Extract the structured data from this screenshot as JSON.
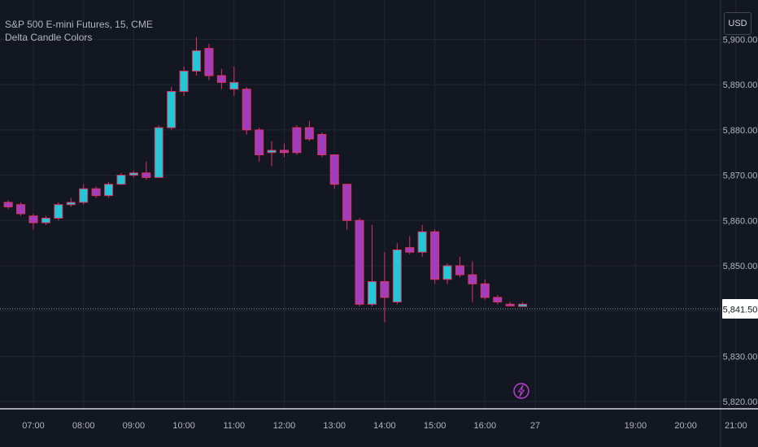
{
  "header": {
    "symbol_line": "S&P 500 E-mini Futures, 15, CME",
    "indicator_name": "Delta Candle Colors"
  },
  "currency_button": "USD",
  "price_label": "5,841.50",
  "event_marker_icon": "lightning-bolt-icon",
  "colors": {
    "background": "#131722",
    "grid": "#232632",
    "axis_text": "#b2b5be",
    "bullish_candle": "#22c8d8",
    "bearish_candle": "#a23dbe",
    "wick_red": "#e0335f",
    "price_label_bg": "#ffffff",
    "event_marker": "#c13fd0"
  },
  "chart_data": {
    "type": "candlestick",
    "title": "S&P 500 E-mini Futures, 15, CME",
    "indicator": "Delta Candle Colors",
    "x_tick_labels": [
      "07:00",
      "08:00",
      "09:00",
      "10:00",
      "11:00",
      "12:00",
      "13:00",
      "14:00",
      "15:00",
      "16:00",
      "27",
      "19:00",
      "20:00",
      "21:00"
    ],
    "y_tick_labels": [
      "5,900.00",
      "5,890.00",
      "5,880.00",
      "5,870.00",
      "5,860.00",
      "5,850.00",
      "5,830.00",
      "5,820.00"
    ],
    "y_ticks": [
      5900,
      5890,
      5880,
      5870,
      5860,
      5850,
      5830,
      5820
    ],
    "ylim": [
      5818.4,
      5908.7
    ],
    "x_range_hours": [
      6.25,
      21.75
    ],
    "last_price": 5841.5,
    "grid": true,
    "candles": [
      {
        "t": 6.5,
        "o": 5864,
        "h": 5864.5,
        "l": 5862.5,
        "c": 5863,
        "color": "bearish"
      },
      {
        "t": 6.75,
        "o": 5863.5,
        "h": 5864,
        "l": 5861,
        "c": 5861.5,
        "color": "bearish"
      },
      {
        "t": 7.0,
        "o": 5861,
        "h": 5861.5,
        "l": 5858,
        "c": 5859.5,
        "color": "bearish"
      },
      {
        "t": 7.25,
        "o": 5859.5,
        "h": 5861,
        "l": 5859,
        "c": 5860.5,
        "color": "bullish"
      },
      {
        "t": 7.5,
        "o": 5860.5,
        "h": 5864,
        "l": 5860,
        "c": 5863.5,
        "color": "bullish"
      },
      {
        "t": 7.75,
        "o": 5863.5,
        "h": 5865,
        "l": 5863,
        "c": 5864,
        "color": "bullish"
      },
      {
        "t": 8.0,
        "o": 5864,
        "h": 5868,
        "l": 5863.5,
        "c": 5867,
        "color": "bullish"
      },
      {
        "t": 8.25,
        "o": 5867,
        "h": 5867.5,
        "l": 5865,
        "c": 5865.5,
        "color": "bearish"
      },
      {
        "t": 8.5,
        "o": 5865.5,
        "h": 5868.5,
        "l": 5865,
        "c": 5868,
        "color": "bullish"
      },
      {
        "t": 8.75,
        "o": 5868,
        "h": 5870.5,
        "l": 5868,
        "c": 5870,
        "color": "bullish"
      },
      {
        "t": 9.0,
        "o": 5870,
        "h": 5871,
        "l": 5869.5,
        "c": 5870.5,
        "color": "bullish"
      },
      {
        "t": 9.25,
        "o": 5870.5,
        "h": 5873,
        "l": 5869,
        "c": 5869.5,
        "color": "bearish"
      },
      {
        "t": 9.5,
        "o": 5869.5,
        "h": 5881,
        "l": 5869.5,
        "c": 5880.5,
        "color": "bullish"
      },
      {
        "t": 9.75,
        "o": 5880.5,
        "h": 5889.5,
        "l": 5880,
        "c": 5888.5,
        "color": "bullish"
      },
      {
        "t": 10.0,
        "o": 5888.5,
        "h": 5894,
        "l": 5887.5,
        "c": 5893,
        "color": "bullish"
      },
      {
        "t": 10.25,
        "o": 5893,
        "h": 5900.5,
        "l": 5892,
        "c": 5897.5,
        "color": "bullish"
      },
      {
        "t": 10.5,
        "o": 5898,
        "h": 5899,
        "l": 5891,
        "c": 5892,
        "color": "bearish"
      },
      {
        "t": 10.75,
        "o": 5892,
        "h": 5893.5,
        "l": 5889,
        "c": 5890.5,
        "color": "bearish"
      },
      {
        "t": 11.0,
        "o": 5890.5,
        "h": 5894,
        "l": 5887.5,
        "c": 5889,
        "color": "bullish"
      },
      {
        "t": 11.25,
        "o": 5889,
        "h": 5889.5,
        "l": 5879,
        "c": 5880,
        "color": "bearish"
      },
      {
        "t": 11.5,
        "o": 5880,
        "h": 5880.5,
        "l": 5873,
        "c": 5874.5,
        "color": "bearish"
      },
      {
        "t": 11.75,
        "o": 5875,
        "h": 5877.5,
        "l": 5872,
        "c": 5875.5,
        "color": "bullish"
      },
      {
        "t": 12.0,
        "o": 5875.5,
        "h": 5877,
        "l": 5874,
        "c": 5875,
        "color": "bearish"
      },
      {
        "t": 12.25,
        "o": 5875,
        "h": 5881,
        "l": 5874.5,
        "c": 5880.5,
        "color": "bearish"
      },
      {
        "t": 12.5,
        "o": 5880.5,
        "h": 5882,
        "l": 5877.5,
        "c": 5878,
        "color": "bearish"
      },
      {
        "t": 12.75,
        "o": 5879,
        "h": 5879.5,
        "l": 5874,
        "c": 5874.5,
        "color": "bearish"
      },
      {
        "t": 13.0,
        "o": 5874.5,
        "h": 5874.5,
        "l": 5867,
        "c": 5868,
        "color": "bearish"
      },
      {
        "t": 13.25,
        "o": 5868,
        "h": 5868,
        "l": 5858,
        "c": 5860,
        "color": "bearish"
      },
      {
        "t": 13.5,
        "o": 5860,
        "h": 5860.5,
        "l": 5841,
        "c": 5841.5,
        "color": "bearish"
      },
      {
        "t": 13.75,
        "o": 5841.5,
        "h": 5859,
        "l": 5841,
        "c": 5846.5,
        "color": "bullish"
      },
      {
        "t": 14.0,
        "o": 5846.5,
        "h": 5853,
        "l": 5837.5,
        "c": 5843,
        "color": "bearish"
      },
      {
        "t": 14.25,
        "o": 5842,
        "h": 5855,
        "l": 5841.5,
        "c": 5853.5,
        "color": "bullish"
      },
      {
        "t": 14.5,
        "o": 5854,
        "h": 5856.5,
        "l": 5852.5,
        "c": 5853,
        "color": "bearish"
      },
      {
        "t": 14.75,
        "o": 5853,
        "h": 5859,
        "l": 5852,
        "c": 5857.5,
        "color": "bullish"
      },
      {
        "t": 15.0,
        "o": 5857.5,
        "h": 5858,
        "l": 5846,
        "c": 5847,
        "color": "bearish"
      },
      {
        "t": 15.25,
        "o": 5847,
        "h": 5850.5,
        "l": 5846,
        "c": 5850,
        "color": "bullish"
      },
      {
        "t": 15.5,
        "o": 5850,
        "h": 5852,
        "l": 5847.5,
        "c": 5848,
        "color": "bearish"
      },
      {
        "t": 15.75,
        "o": 5848,
        "h": 5851,
        "l": 5842,
        "c": 5846,
        "color": "bearish"
      },
      {
        "t": 16.0,
        "o": 5846,
        "h": 5847,
        "l": 5842.5,
        "c": 5843,
        "color": "bearish"
      },
      {
        "t": 16.25,
        "o": 5843,
        "h": 5843.5,
        "l": 5841.5,
        "c": 5842,
        "color": "bearish"
      },
      {
        "t": 16.5,
        "o": 5841.5,
        "h": 5842,
        "l": 5841,
        "c": 5841.5,
        "color": "bearish"
      },
      {
        "t": 16.75,
        "o": 5841,
        "h": 5842,
        "l": 5841,
        "c": 5841.5,
        "color": "bullish"
      }
    ]
  }
}
